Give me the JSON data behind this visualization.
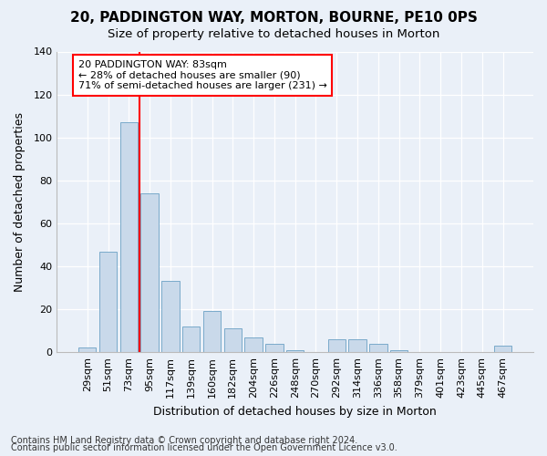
{
  "title1": "20, PADDINGTON WAY, MORTON, BOURNE, PE10 0PS",
  "title2": "Size of property relative to detached houses in Morton",
  "xlabel": "Distribution of detached houses by size in Morton",
  "ylabel": "Number of detached properties",
  "categories": [
    "29sqm",
    "51sqm",
    "73sqm",
    "95sqm",
    "117sqm",
    "139sqm",
    "160sqm",
    "182sqm",
    "204sqm",
    "226sqm",
    "248sqm",
    "270sqm",
    "292sqm",
    "314sqm",
    "336sqm",
    "358sqm",
    "379sqm",
    "401sqm",
    "423sqm",
    "445sqm",
    "467sqm"
  ],
  "values": [
    2,
    47,
    107,
    74,
    33,
    12,
    19,
    11,
    7,
    4,
    1,
    0,
    6,
    6,
    4,
    1,
    0,
    0,
    0,
    0,
    3
  ],
  "bar_color": "#c9d9ea",
  "bar_edge_color": "#7aaaca",
  "red_line_x": 2.5,
  "annotation_line1": "20 PADDINGTON WAY: 83sqm",
  "annotation_line2": "← 28% of detached houses are smaller (90)",
  "annotation_line3": "71% of semi-detached houses are larger (231) →",
  "annotation_box_color": "white",
  "annotation_box_edge_color": "red",
  "ylim": [
    0,
    140
  ],
  "yticks": [
    0,
    20,
    40,
    60,
    80,
    100,
    120,
    140
  ],
  "footer1": "Contains HM Land Registry data © Crown copyright and database right 2024.",
  "footer2": "Contains public sector information licensed under the Open Government Licence v3.0.",
  "background_color": "#eaf0f8",
  "plot_background_color": "#eaf0f8",
  "title1_fontsize": 11,
  "title2_fontsize": 9.5,
  "xlabel_fontsize": 9,
  "ylabel_fontsize": 9,
  "tick_fontsize": 8,
  "annotation_fontsize": 8,
  "footer_fontsize": 7
}
